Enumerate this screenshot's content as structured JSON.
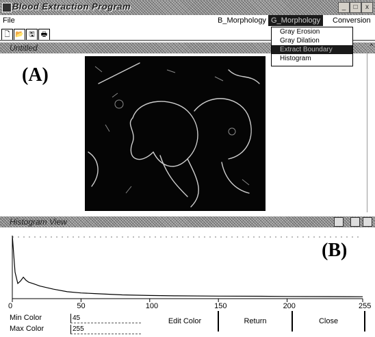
{
  "window": {
    "title": "Blood Extraction Program",
    "buttons": [
      "_",
      "□",
      "x"
    ]
  },
  "menubar": {
    "items": [
      {
        "label": "File"
      },
      {
        "label": "B_Morphology"
      },
      {
        "label": "G_Morphology"
      },
      {
        "label": "Conversion"
      }
    ]
  },
  "toolbar": {
    "icons": [
      "new-file-icon",
      "open-folder-icon",
      "save-icon",
      "print-icon"
    ]
  },
  "dropdown": {
    "items": [
      "Gray Erosion",
      "Gray Dilation",
      "Extract Boundary",
      "Histogram"
    ],
    "selected_index": 2
  },
  "panel_a": {
    "subtitle": "Untitled",
    "label": "(A)"
  },
  "panel_b": {
    "subtitle": "Histogram View",
    "label": "(B)"
  },
  "chart_data": {
    "type": "line",
    "xlim": [
      0,
      255
    ],
    "ticks": [
      0,
      50,
      100,
      150,
      200,
      255
    ],
    "x": [
      0,
      2,
      4,
      6,
      8,
      10,
      12,
      15,
      20,
      30,
      40,
      50,
      60,
      80,
      100,
      120,
      150,
      180,
      200,
      230,
      255
    ],
    "y": [
      100,
      42,
      24,
      28,
      34,
      29,
      26,
      24,
      20,
      15,
      11,
      9,
      8,
      6,
      5,
      4.5,
      4,
      3.8,
      3.5,
      3.3,
      3
    ],
    "ylim": [
      0,
      100
    ]
  },
  "controls": {
    "min_color_label": "Min Color",
    "min_color_value": "45",
    "max_color_label": "Max Color",
    "max_color_value": "255",
    "edit_button": "Edit Color",
    "return_button": "Return",
    "close_button": "Close"
  }
}
